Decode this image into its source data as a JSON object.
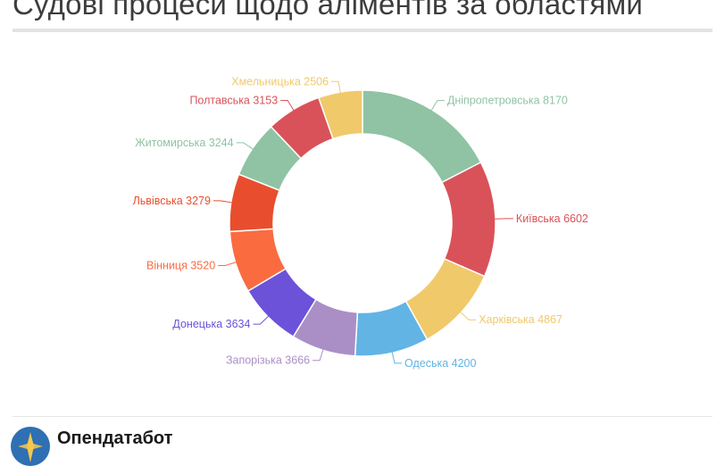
{
  "header": {
    "title": "Судові процеси щодо аліментів за областями"
  },
  "footer": {
    "brand": "Опендатабот"
  },
  "chart_data": {
    "type": "pie",
    "variant": "donut",
    "title": "Судові процеси щодо аліментів за областями",
    "slices": [
      {
        "label": "Дніпропетровська",
        "value": 8170,
        "color": "#8fc3a4"
      },
      {
        "label": "Київська",
        "value": 6602,
        "color": "#da5259"
      },
      {
        "label": "Харківська",
        "value": 4867,
        "color": "#f0c96b"
      },
      {
        "label": "Одеська",
        "value": 4200,
        "color": "#61b4e4"
      },
      {
        "label": "Запорізька",
        "value": 3666,
        "color": "#aa8fc7"
      },
      {
        "label": "Донецька",
        "value": 3634,
        "color": "#6b52d9"
      },
      {
        "label": "Вінниця",
        "value": 3520,
        "color": "#fb6b40"
      },
      {
        "label": "Львівська",
        "value": 3279,
        "color": "#e84e2d"
      },
      {
        "label": "Житомирська",
        "value": 3244,
        "color": "#8fc3a4"
      },
      {
        "label": "Полтавська",
        "value": 3153,
        "color": "#da5259"
      },
      {
        "label": "Хмельницька",
        "value": 2506,
        "color": "#f0c96b"
      }
    ]
  }
}
